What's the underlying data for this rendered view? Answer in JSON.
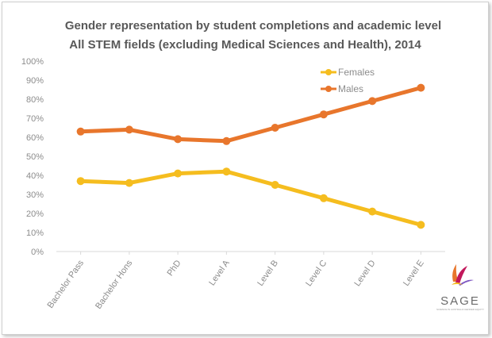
{
  "chart_data": {
    "type": "line",
    "title_line1": "Gender representation by student completions and academic level",
    "title_line2": "All STEM fields (excluding Medical Sciences and Health), 2014",
    "categories": [
      "Bachelor Pass",
      "Bachelor Hons",
      "PhD",
      "Level A",
      "Level B",
      "Level C",
      "Level D",
      "Level E"
    ],
    "series": [
      {
        "name": "Females",
        "color": "#F5BD1F",
        "values": [
          37,
          36,
          41,
          42,
          35,
          28,
          21,
          14
        ]
      },
      {
        "name": "Males",
        "color": "#E8762C",
        "values": [
          63,
          64,
          59,
          58,
          65,
          72,
          79,
          86
        ]
      }
    ],
    "ylim": [
      0,
      100
    ],
    "yticks": [
      "0%",
      "10%",
      "20%",
      "30%",
      "40%",
      "50%",
      "60%",
      "70%",
      "80%",
      "90%",
      "100%"
    ],
    "legend_position": "top-right",
    "grid": false
  },
  "logo": {
    "name": "SAGE",
    "subtitle": "SCIENCE IN AUSTRALIA GENDER EQUITY",
    "colors": [
      "#E8762C",
      "#C2185B",
      "#7E57C2",
      "#F5BD1F"
    ]
  }
}
